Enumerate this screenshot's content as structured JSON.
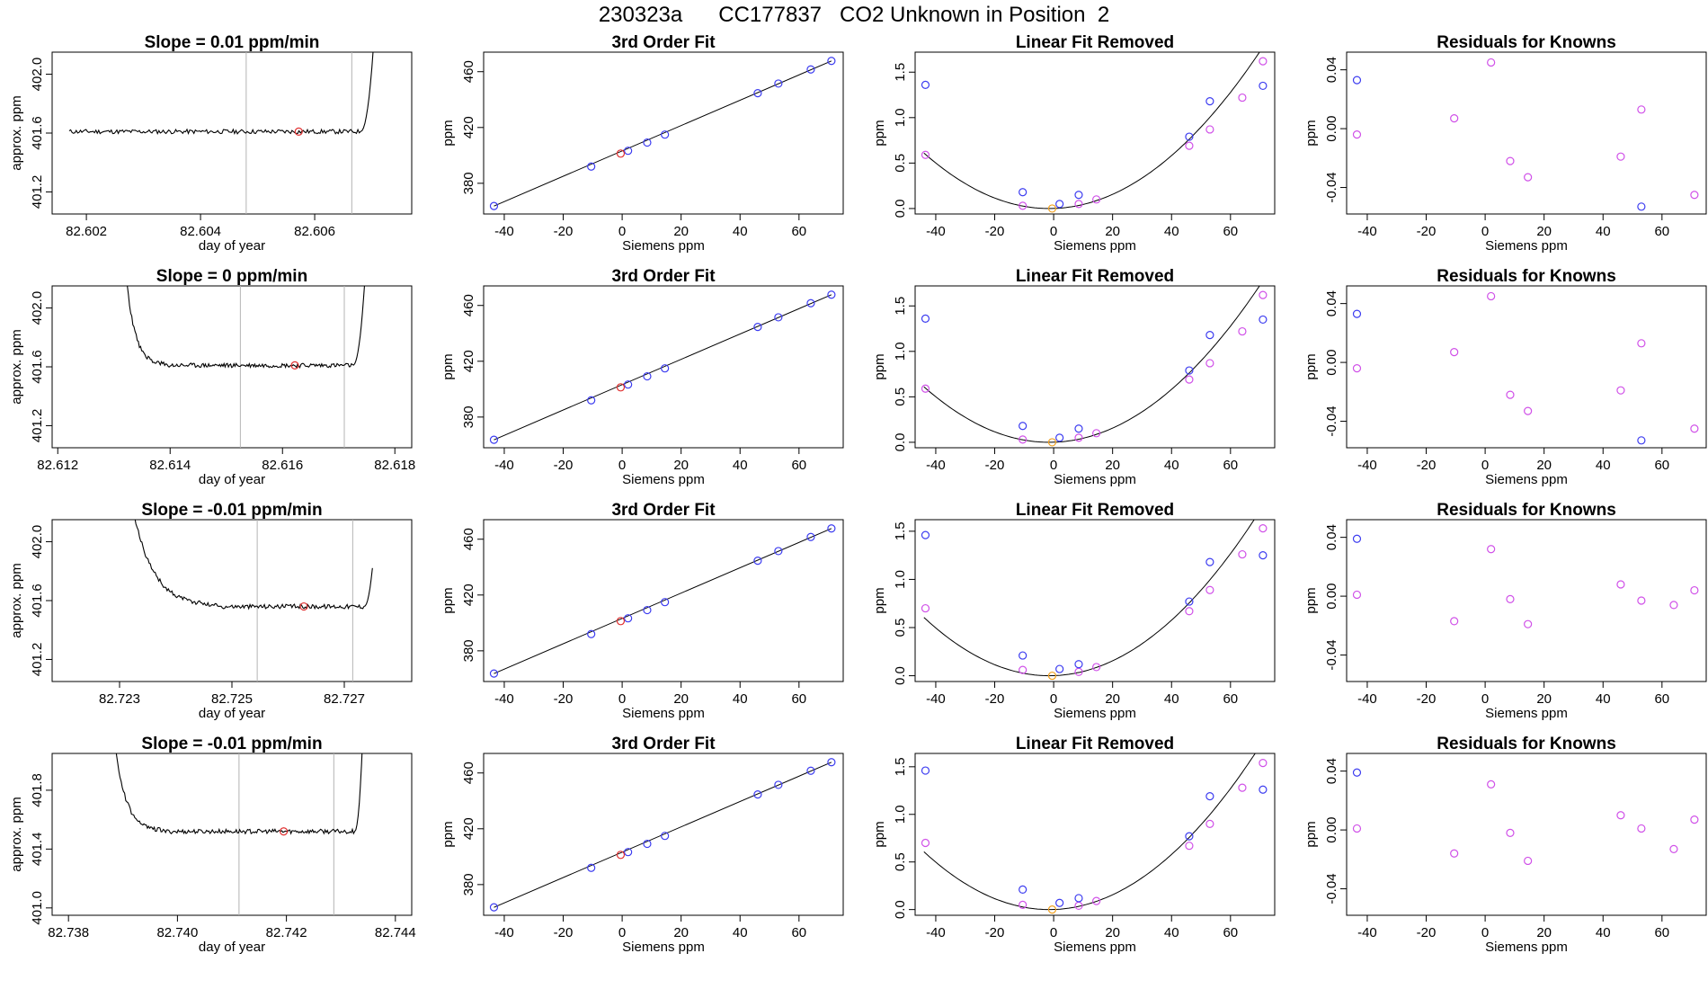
{
  "figure": {
    "run_id": "230323a",
    "tank_id": "CC177837",
    "description": "CO2 Unknown in Position  2"
  },
  "colors": {
    "known_blue": "#3c3cf0",
    "known_magenta": "#d050e8",
    "unknown_red": "#e03030",
    "unknown_orange": "#f0a020",
    "line": "#000000",
    "window_line": "#b4b4b4"
  },
  "chart_data": [
    {
      "type": "line",
      "panel": "trace",
      "row": 1,
      "title": "Slope =  0.01  ppm/min",
      "xlabel": "day of year",
      "ylabel": "approx. ppm",
      "xlim": [
        82.6014,
        82.6077
      ],
      "ylim": [
        401.05,
        402.15
      ],
      "xticks": [
        82.602,
        82.604,
        82.606
      ],
      "yticks": [
        401.2,
        401.6,
        402.0
      ],
      "xdigits": 3,
      "ydigits": 1,
      "trace_x": [
        82.6017,
        82.6071
      ],
      "trace_level": 401.61,
      "rise_start": 82.6068,
      "rise_end": 82.60712,
      "fall_start": null,
      "fall_end": null,
      "start_y": null,
      "window": [
        82.6048,
        82.60665
      ],
      "marker": {
        "x": 82.60572,
        "y": 401.61
      },
      "seed": 11
    },
    {
      "type": "line",
      "panel": "fit",
      "row": 1,
      "title": "3rd Order Fit",
      "xlabel": "Siemens ppm",
      "ylabel": "ppm",
      "xlim": [
        -47,
        75
      ],
      "ylim": [
        358,
        474
      ],
      "xticks": [
        -40,
        -20,
        0,
        20,
        40,
        60
      ],
      "yticks": [
        380,
        420,
        460
      ]
    },
    {
      "type": "line",
      "panel": "linear_removed",
      "row": 1,
      "title": "Linear Fit Removed",
      "xlabel": "Siemens ppm",
      "ylabel": "ppm",
      "xlim": [
        -47,
        75
      ],
      "ylim": [
        -0.06,
        1.72
      ],
      "xticks": [
        -40,
        -20,
        0,
        20,
        40,
        60
      ],
      "yticks": [
        0.0,
        0.5,
        1.0,
        1.5
      ],
      "blue": [
        [
          -43.5,
          1.36
        ],
        [
          -10.5,
          0.18
        ],
        [
          2,
          0.05
        ],
        [
          8.5,
          0.15
        ],
        [
          46,
          0.79
        ],
        [
          53,
          1.18
        ],
        [
          71,
          1.35
        ]
      ],
      "magenta": [
        [
          -43.5,
          0.59
        ],
        [
          -10.5,
          0.03
        ],
        [
          8.5,
          0.05
        ],
        [
          14.5,
          0.1
        ],
        [
          46,
          0.69
        ],
        [
          53,
          0.87
        ],
        [
          64,
          1.22
        ],
        [
          71,
          1.62
        ]
      ],
      "orange": [
        [
          -0.5,
          0.0
        ]
      ],
      "curve_a": 0.000338,
      "curve_c": -1.5
    },
    {
      "type": "scatter",
      "panel": "residuals",
      "row": 1,
      "title": "Residuals for Knowns",
      "xlabel": "Siemens ppm",
      "ylabel": "ppm",
      "xlim": [
        -47,
        75
      ],
      "ylim": [
        -0.058,
        0.052
      ],
      "xticks": [
        -40,
        -20,
        0,
        20,
        40,
        60
      ],
      "yticks": [
        -0.04,
        0.0,
        0.04
      ],
      "blue": [
        [
          -43.5,
          0.033
        ],
        [
          53,
          -0.053
        ]
      ],
      "magenta": [
        [
          -43.5,
          -0.004
        ],
        [
          -10.5,
          0.007
        ],
        [
          2,
          0.045
        ],
        [
          8.5,
          -0.022
        ],
        [
          14.5,
          -0.033
        ],
        [
          46,
          -0.019
        ],
        [
          53,
          0.013
        ],
        [
          71,
          -0.045
        ]
      ]
    },
    {
      "type": "line",
      "panel": "trace",
      "row": 2,
      "title": "Slope =  0  ppm/min",
      "xlabel": "day of year",
      "ylabel": "approx. ppm",
      "xlim": [
        82.6119,
        82.6183
      ],
      "ylim": [
        401.05,
        402.15
      ],
      "xticks": [
        82.612,
        82.614,
        82.616,
        82.618
      ],
      "yticks": [
        401.2,
        401.6,
        402.0
      ],
      "xdigits": 3,
      "ydigits": 1,
      "trace_x": [
        82.6132,
        82.6175
      ],
      "trace_level": 401.61,
      "rise_start": 82.61725,
      "rise_end": 82.61755,
      "fall_start": 82.6132,
      "fall_end": 82.6139,
      "start_y": 402.3,
      "window": [
        82.61525,
        82.6171
      ],
      "marker": {
        "x": 82.61622,
        "y": 401.61
      },
      "seed": 23
    },
    {
      "type": "line",
      "panel": "fit",
      "row": 2,
      "title": "3rd Order Fit",
      "xlabel": "Siemens ppm",
      "ylabel": "ppm",
      "xlim": [
        -47,
        75
      ],
      "ylim": [
        358,
        474
      ],
      "xticks": [
        -40,
        -20,
        0,
        20,
        40,
        60
      ],
      "yticks": [
        380,
        420,
        460
      ]
    },
    {
      "type": "line",
      "panel": "linear_removed",
      "row": 2,
      "title": "Linear Fit Removed",
      "xlabel": "Siemens ppm",
      "ylabel": "ppm",
      "xlim": [
        -47,
        75
      ],
      "ylim": [
        -0.06,
        1.72
      ],
      "xticks": [
        -40,
        -20,
        0,
        20,
        40,
        60
      ],
      "yticks": [
        0.0,
        0.5,
        1.0,
        1.5
      ],
      "blue": [
        [
          -43.5,
          1.36
        ],
        [
          -10.5,
          0.18
        ],
        [
          2,
          0.05
        ],
        [
          8.5,
          0.15
        ],
        [
          46,
          0.79
        ],
        [
          53,
          1.18
        ],
        [
          71,
          1.35
        ]
      ],
      "magenta": [
        [
          -43.5,
          0.59
        ],
        [
          -10.5,
          0.03
        ],
        [
          8.5,
          0.05
        ],
        [
          14.5,
          0.1
        ],
        [
          46,
          0.69
        ],
        [
          53,
          0.87
        ],
        [
          64,
          1.22
        ],
        [
          71,
          1.62
        ]
      ],
      "orange": [
        [
          -0.5,
          0.0
        ]
      ],
      "curve_a": 0.000338,
      "curve_c": -1.5
    },
    {
      "type": "scatter",
      "panel": "residuals",
      "row": 2,
      "title": "Residuals for Knowns",
      "xlabel": "Siemens ppm",
      "ylabel": "ppm",
      "xlim": [
        -47,
        75
      ],
      "ylim": [
        -0.058,
        0.052
      ],
      "xticks": [
        -40,
        -20,
        0,
        20,
        40,
        60
      ],
      "yticks": [
        -0.04,
        0.0,
        0.04
      ],
      "blue": [
        [
          -43.5,
          0.033
        ],
        [
          53,
          -0.053
        ]
      ],
      "magenta": [
        [
          -43.5,
          -0.004
        ],
        [
          -10.5,
          0.007
        ],
        [
          2,
          0.045
        ],
        [
          8.5,
          -0.022
        ],
        [
          14.5,
          -0.033
        ],
        [
          46,
          -0.019
        ],
        [
          53,
          0.013
        ],
        [
          71,
          -0.045
        ]
      ]
    },
    {
      "type": "line",
      "panel": "trace",
      "row": 3,
      "title": "Slope =  -0.01  ppm/min",
      "xlabel": "day of year",
      "ylabel": "approx. ppm",
      "xlim": [
        82.7218,
        82.7282
      ],
      "ylim": [
        401.05,
        402.15
      ],
      "xticks": [
        82.723,
        82.725,
        82.727
      ],
      "yticks": [
        401.2,
        401.6,
        402.0
      ],
      "xdigits": 3,
      "ydigits": 1,
      "trace_x": [
        82.7228,
        82.7275
      ],
      "trace_level": 401.56,
      "rise_start": 82.72735,
      "rise_end": 82.72765,
      "fall_start": 82.7232,
      "fall_end": 82.7248,
      "start_y": 402.3,
      "window": [
        82.72545,
        82.72715
      ],
      "marker": {
        "x": 82.72628,
        "y": 401.56
      },
      "seed": 37
    },
    {
      "type": "line",
      "panel": "fit",
      "row": 3,
      "title": "3rd Order Fit",
      "xlabel": "Siemens ppm",
      "ylabel": "ppm",
      "xlim": [
        -47,
        75
      ],
      "ylim": [
        358,
        474
      ],
      "xticks": [
        -40,
        -20,
        0,
        20,
        40,
        60
      ],
      "yticks": [
        380,
        420,
        460
      ]
    },
    {
      "type": "line",
      "panel": "linear_removed",
      "row": 3,
      "title": "Linear Fit Removed",
      "xlabel": "Siemens ppm",
      "ylabel": "ppm",
      "xlim": [
        -47,
        75
      ],
      "ylim": [
        -0.06,
        1.62
      ],
      "xticks": [
        -40,
        -20,
        0,
        20,
        40,
        60
      ],
      "yticks": [
        0.0,
        0.5,
        1.0,
        1.5
      ],
      "blue": [
        [
          -43.5,
          1.46
        ],
        [
          -10.5,
          0.21
        ],
        [
          2,
          0.07
        ],
        [
          8.5,
          0.12
        ],
        [
          46,
          0.77
        ],
        [
          53,
          1.18
        ],
        [
          71,
          1.25
        ]
      ],
      "magenta": [
        [
          -43.5,
          0.7
        ],
        [
          -10.5,
          0.06
        ],
        [
          8.5,
          0.04
        ],
        [
          14.5,
          0.09
        ],
        [
          46,
          0.67
        ],
        [
          53,
          0.89
        ],
        [
          64,
          1.26
        ],
        [
          71,
          1.53
        ]
      ],
      "orange": [
        [
          -0.5,
          0.0
        ]
      ],
      "curve_a": 0.000335,
      "curve_c": -1.5
    },
    {
      "type": "scatter",
      "panel": "residuals",
      "row": 3,
      "title": "Residuals for Knowns",
      "xlabel": "Siemens ppm",
      "ylabel": "ppm",
      "xlim": [
        -47,
        75
      ],
      "ylim": [
        -0.058,
        0.052
      ],
      "xticks": [
        -40,
        -20,
        0,
        20,
        40,
        60
      ],
      "yticks": [
        -0.04,
        0.0,
        0.04
      ],
      "blue": [
        [
          -43.5,
          0.039
        ]
      ],
      "magenta": [
        [
          -43.5,
          0.001
        ],
        [
          -10.5,
          -0.017
        ],
        [
          2,
          0.032
        ],
        [
          8.5,
          -0.002
        ],
        [
          14.5,
          -0.019
        ],
        [
          46,
          0.008
        ],
        [
          53,
          -0.003
        ],
        [
          64,
          -0.006
        ],
        [
          71,
          0.004
        ]
      ]
    },
    {
      "type": "line",
      "panel": "trace",
      "row": 4,
      "title": "Slope =  -0.01  ppm/min",
      "xlabel": "day of year",
      "ylabel": "approx. ppm",
      "xlim": [
        82.7377,
        82.7443
      ],
      "ylim": [
        400.95,
        402.05
      ],
      "xticks": [
        82.738,
        82.74,
        82.742,
        82.744
      ],
      "yticks": [
        401.0,
        401.4,
        401.8
      ],
      "xdigits": 3,
      "ydigits": 1,
      "trace_x": [
        82.7388,
        82.7434
      ],
      "trace_level": 401.52,
      "rise_start": 82.74325,
      "rise_end": 82.74345,
      "fall_start": 82.7388,
      "fall_end": 82.7397,
      "start_y": 402.3,
      "window": [
        82.74113,
        82.74287
      ],
      "marker": {
        "x": 82.74195,
        "y": 401.52
      },
      "seed": 53
    },
    {
      "type": "line",
      "panel": "fit",
      "row": 4,
      "title": "3rd Order Fit",
      "xlabel": "Siemens ppm",
      "ylabel": "ppm",
      "xlim": [
        -47,
        75
      ],
      "ylim": [
        358,
        474
      ],
      "xticks": [
        -40,
        -20,
        0,
        20,
        40,
        60
      ],
      "yticks": [
        380,
        420,
        460
      ]
    },
    {
      "type": "line",
      "panel": "linear_removed",
      "row": 4,
      "title": "Linear Fit Removed",
      "xlabel": "Siemens ppm",
      "ylabel": "ppm",
      "xlim": [
        -47,
        75
      ],
      "ylim": [
        -0.06,
        1.64
      ],
      "xticks": [
        -40,
        -20,
        0,
        20,
        40,
        60
      ],
      "yticks": [
        0.0,
        0.5,
        1.0,
        1.5
      ],
      "blue": [
        [
          -43.5,
          1.46
        ],
        [
          -10.5,
          0.21
        ],
        [
          2,
          0.07
        ],
        [
          8.5,
          0.12
        ],
        [
          46,
          0.77
        ],
        [
          53,
          1.19
        ],
        [
          71,
          1.26
        ]
      ],
      "magenta": [
        [
          -43.5,
          0.7
        ],
        [
          -10.5,
          0.05
        ],
        [
          8.5,
          0.04
        ],
        [
          14.5,
          0.09
        ],
        [
          46,
          0.67
        ],
        [
          53,
          0.9
        ],
        [
          64,
          1.28
        ],
        [
          71,
          1.54
        ]
      ],
      "orange": [
        [
          -0.5,
          0.0
        ]
      ],
      "curve_a": 0.000336,
      "curve_c": -1.5
    },
    {
      "type": "scatter",
      "panel": "residuals",
      "row": 4,
      "title": "Residuals for Knowns",
      "xlabel": "Siemens ppm",
      "ylabel": "ppm",
      "xlim": [
        -47,
        75
      ],
      "ylim": [
        -0.058,
        0.052
      ],
      "xticks": [
        -40,
        -20,
        0,
        20,
        40,
        60
      ],
      "yticks": [
        -0.04,
        0.0,
        0.04
      ],
      "blue": [
        [
          -43.5,
          0.039
        ]
      ],
      "magenta": [
        [
          -43.5,
          0.001
        ],
        [
          -10.5,
          -0.016
        ],
        [
          2,
          0.031
        ],
        [
          8.5,
          -0.002
        ],
        [
          14.5,
          -0.021
        ],
        [
          46,
          0.01
        ],
        [
          53,
          0.001
        ],
        [
          64,
          -0.013
        ],
        [
          71,
          0.007
        ]
      ]
    }
  ],
  "fit_points": {
    "blue": [
      [
        -43.5,
        363.7
      ],
      [
        -10.5,
        392.0
      ],
      [
        2,
        403.3
      ],
      [
        8.5,
        409.2
      ],
      [
        14.5,
        414.9
      ],
      [
        46,
        444.6
      ],
      [
        53,
        451.5
      ],
      [
        64,
        461.6
      ],
      [
        71,
        467.7
      ]
    ],
    "red": [
      [
        -0.5,
        401.3
      ]
    ]
  }
}
